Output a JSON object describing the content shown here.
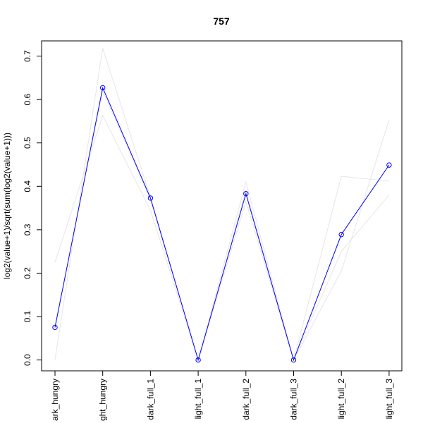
{
  "chart_data": {
    "type": "line",
    "title": "757",
    "xlabel": "",
    "ylabel": "log2(value+1)/sqrt(sum(log2(value+1)))",
    "ylim": [
      -0.025,
      0.735
    ],
    "yticks": [
      0.0,
      0.1,
      0.2,
      0.3,
      0.4,
      0.5,
      0.6,
      0.7
    ],
    "categories": [
      "dark_hungry",
      "light_hungry",
      "dark_full_1",
      "light_full_1",
      "dark_full_2",
      "dark_full_3",
      "light_full_2",
      "light_full_3"
    ],
    "category_tick_labels": [
      "ark_hungry",
      "ght_hungry",
      "dark_full_1",
      "light_full_1",
      "dark_full_2",
      "dark_full_3",
      "light_full_2",
      "light_full_3"
    ],
    "grid": false,
    "legend": "none",
    "series": [
      {
        "role": "highlight",
        "color": "#0000ff",
        "markers": "open-circle",
        "values": [
          0.075,
          0.627,
          0.373,
          0.0,
          0.383,
          0.0,
          0.289,
          0.449
        ]
      },
      {
        "role": "background",
        "color": "#e6e6e6",
        "values": [
          0.0,
          0.718,
          0.375,
          0.0,
          0.41,
          0.0,
          0.423,
          0.412
        ]
      },
      {
        "role": "background",
        "color": "#e6e6e6",
        "values": [
          0.225,
          0.563,
          0.345,
          0.0,
          0.365,
          0.0,
          0.205,
          0.553
        ]
      },
      {
        "role": "background",
        "color": "#e6e6e6",
        "values": [
          0.08,
          0.62,
          0.37,
          0.0,
          0.39,
          0.0,
          0.25,
          0.38
        ]
      }
    ]
  }
}
